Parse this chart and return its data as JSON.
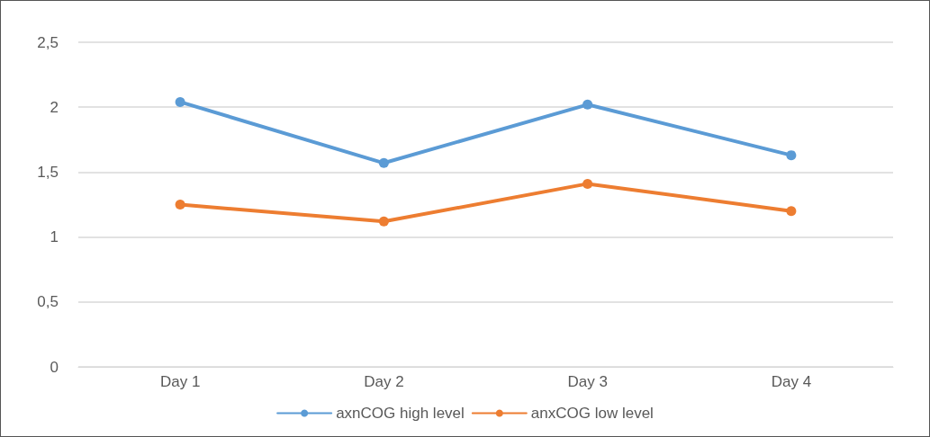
{
  "chart_data": {
    "type": "line",
    "categories": [
      "Day 1",
      "Day 2",
      "Day 3",
      "Day 4"
    ],
    "series": [
      {
        "name": "axnCOG high level",
        "color": "#5b9bd5",
        "values": [
          2.04,
          1.57,
          2.02,
          1.63
        ]
      },
      {
        "name": "anxCOG low level",
        "color": "#ed7d31",
        "values": [
          1.25,
          1.12,
          1.41,
          1.2
        ]
      }
    ],
    "ylim": [
      0,
      2.5
    ],
    "yticks": [
      0,
      {
        "value": 0.5,
        "label": "0,5"
      },
      1,
      {
        "value": 1.5,
        "label": "1,5"
      },
      2,
      {
        "value": 2.5,
        "label": "2,5"
      }
    ],
    "grid": "y",
    "legend": "bottom",
    "marker": "circle",
    "line_style": "solid"
  }
}
